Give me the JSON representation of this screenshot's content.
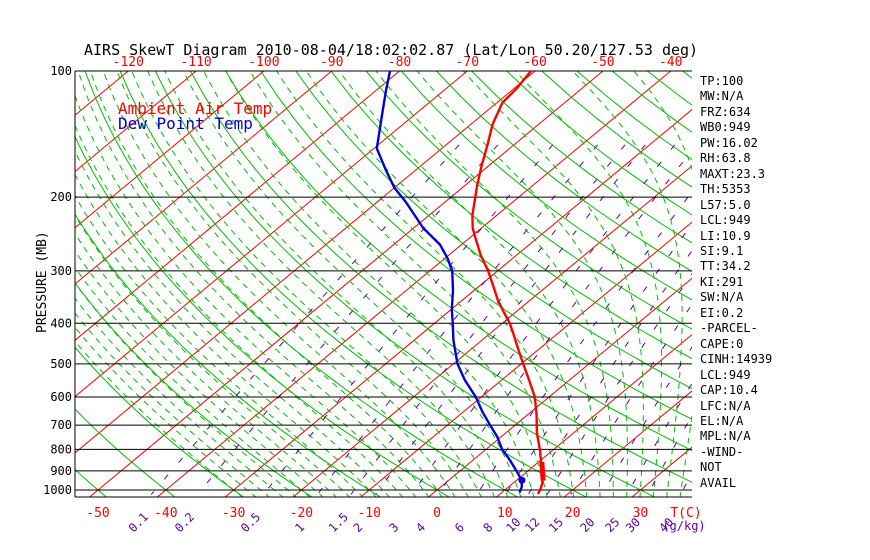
{
  "title": "AIRS SkewT Diagram 2010-08-04/18:02:02.87 (Lat/Lon 50.20/127.53 deg)",
  "stats_panel": {
    "items": [
      "TP:100",
      "MW:N/A",
      "FRZ:634",
      "WB0:949",
      "PW:16.02",
      "RH:63.8",
      "MAXT:23.3",
      "TH:5353",
      "L57:5.0",
      "LCL:949",
      "LI:10.9",
      "SI:9.1",
      "TT:34.2",
      "KI:291",
      "SW:N/A",
      "EI:0.2",
      "-PARCEL-",
      "CAPE:0",
      "CINH:14939",
      "LCL:949",
      "CAP:10.4",
      "LFC:N/A",
      "EL:N/A",
      "MPL:N/A",
      "-WIND-",
      "NOT",
      "AVAIL"
    ]
  },
  "chart_data": {
    "type": "skewt-log-p",
    "title": "AIRS SkewT Diagram 2010-08-04/18:02:02.87 (Lat/Lon 50.20/127.53 deg)",
    "axes": {
      "pressure_label": "PRESSURE (MB)",
      "pressure_levels": [
        100,
        200,
        300,
        400,
        500,
        600,
        700,
        800,
        900,
        1000
      ],
      "top_isotherm_labels": [
        -120,
        -110,
        -100,
        -90,
        -80,
        -70,
        -60,
        -50,
        -40
      ],
      "bottom_isotherm_labels": [
        -50,
        -40,
        -30,
        -20,
        -10,
        0,
        10,
        20,
        30
      ],
      "temp_unit_label": "T(C)",
      "mixing_unit_label": "(g/kg)",
      "pressure_range_mb": [
        100,
        1045
      ],
      "grid_on": true
    },
    "grid": {
      "isotherms_c": {
        "min": -120,
        "max": 30,
        "step": 10
      },
      "dry_adiabats_c": {
        "min": -50,
        "max": 180,
        "step": 10
      },
      "moist_adiabats_c": {
        "min": -30,
        "max": 38,
        "step": 2
      },
      "mixing_ratios_gkg": [
        0.1,
        0.2,
        0.5,
        1,
        1.5,
        2,
        3,
        4,
        6,
        8,
        10,
        12,
        15,
        20,
        25,
        30,
        40
      ]
    },
    "colors": {
      "isotherm": "#ff0000",
      "dry_adiabat": "#00be00",
      "moist_adiabat": "#00be00",
      "mixing_ratio": "#5c00a8",
      "pressure_line": "#000000",
      "temperature_trace": "#ff0000",
      "dewpoint_trace": "#0000dd"
    },
    "series": [
      {
        "name": "Ambient Air Temp",
        "points_p_t": [
          [
            100,
            -60.6
          ],
          [
            110,
            -59.6
          ],
          [
            119,
            -59.2
          ],
          [
            134,
            -56.8
          ],
          [
            150,
            -53.9
          ],
          [
            168,
            -51.1
          ],
          [
            187,
            -48.3
          ],
          [
            205,
            -45.7
          ],
          [
            221,
            -43.6
          ],
          [
            237,
            -41.3
          ],
          [
            253,
            -38.7
          ],
          [
            275,
            -35.3
          ],
          [
            300,
            -31.4
          ],
          [
            324,
            -28.2
          ],
          [
            352,
            -24.8
          ],
          [
            376,
            -21.8
          ],
          [
            400,
            -18.9
          ],
          [
            427,
            -16.2
          ],
          [
            464,
            -12.8
          ],
          [
            500,
            -9.7
          ],
          [
            546,
            -6.0
          ],
          [
            600,
            -2.1
          ],
          [
            661,
            1.3
          ],
          [
            731,
            4.6
          ],
          [
            803,
            8.1
          ],
          [
            883,
            11.4
          ],
          [
            931,
            13.3
          ],
          [
            966,
            14.4
          ],
          [
            1000,
            15.2
          ],
          [
            1022,
            15.6
          ]
        ]
      },
      {
        "name": "Dew Point Temp",
        "points_p_t": [
          [
            100,
            -81.4
          ],
          [
            111,
            -78.6
          ],
          [
            124,
            -75.5
          ],
          [
            153,
            -69.6
          ],
          [
            172,
            -64.5
          ],
          [
            190,
            -60.0
          ],
          [
            205,
            -55.9
          ],
          [
            237,
            -48.6
          ],
          [
            260,
            -43.1
          ],
          [
            280,
            -39.6
          ],
          [
            300,
            -36.7
          ],
          [
            333,
            -33.2
          ],
          [
            372,
            -29.8
          ],
          [
            400,
            -27.3
          ],
          [
            439,
            -24.2
          ],
          [
            500,
            -19.4
          ],
          [
            547,
            -15.4
          ],
          [
            600,
            -10.8
          ],
          [
            652,
            -7.1
          ],
          [
            700,
            -3.7
          ],
          [
            746,
            -0.6
          ],
          [
            800,
            2.4
          ],
          [
            848,
            5.4
          ],
          [
            900,
            8.3
          ],
          [
            945,
            10.6
          ],
          [
            981,
            11.9
          ],
          [
            1013,
            12.6
          ]
        ]
      }
    ],
    "markers": {
      "dewpoint_surface_dot_p_t": [
        948,
        10.8
      ],
      "temperature_thick_segment_p_t": [
        [
          858,
          10.5
        ],
        [
          950,
          14.0
        ]
      ]
    }
  }
}
